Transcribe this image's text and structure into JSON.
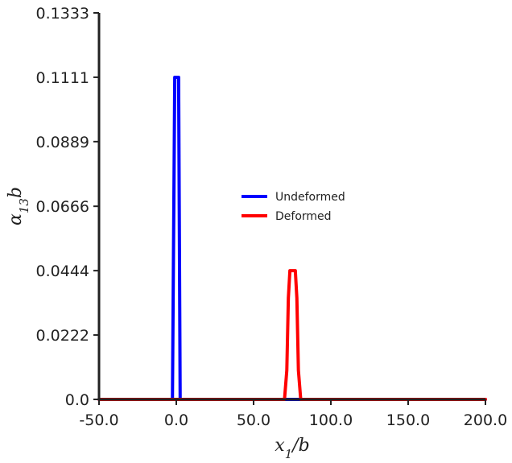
{
  "chart_data": {
    "type": "line",
    "xlabel": "x1/b",
    "ylabel": "α13b",
    "xlim": [
      -50.0,
      200.0
    ],
    "ylim": [
      0.0,
      0.1333
    ],
    "x_ticks": [
      "-50.0",
      "0.0",
      "50.0",
      "100.0",
      "150.0",
      "200.0"
    ],
    "y_ticks": [
      "0.0",
      "0.0222",
      "0.0444",
      "0.0666",
      "0.0889",
      "0.1111",
      "0.1333"
    ],
    "grid": false,
    "legend_position": "center-right",
    "series": [
      {
        "name": "Undeformed",
        "color": "#0000ff",
        "x": [
          -50,
          -2.5,
          -1.0,
          1.5,
          2.5,
          200
        ],
        "y": [
          0.0,
          0.0,
          0.1111,
          0.1111,
          0.0,
          0.0
        ]
      },
      {
        "name": "Deformed",
        "color": "#ff0000",
        "x": [
          -50,
          70.0,
          71.5,
          72.5,
          73.5,
          77.0,
          78.0,
          79.0,
          80.5,
          200
        ],
        "y": [
          0.0,
          0.0,
          0.01,
          0.035,
          0.0444,
          0.0444,
          0.035,
          0.01,
          0.0,
          0.0
        ]
      }
    ]
  }
}
